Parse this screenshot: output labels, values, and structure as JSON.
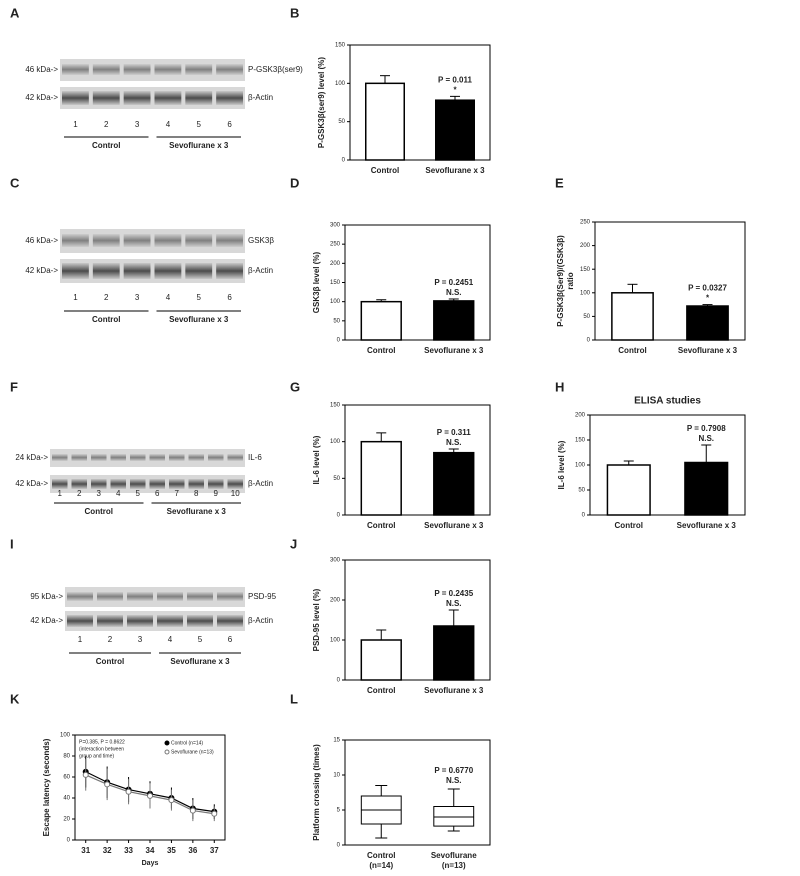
{
  "panel_letters": [
    "A",
    "B",
    "C",
    "D",
    "E",
    "F",
    "G",
    "H",
    "I",
    "J",
    "K",
    "L"
  ],
  "blots": [
    {
      "bands": [
        {
          "mw": "46 kDa->",
          "name": "P-GSK3β(ser9)"
        },
        {
          "mw": "42 kDa->",
          "name": "β-Actin"
        }
      ],
      "lanes": [
        "1",
        "2",
        "3",
        "4",
        "5",
        "6"
      ],
      "groups": [
        "Control",
        "Sevoflurane x 3"
      ]
    },
    {
      "bands": [
        {
          "mw": "46 kDa->",
          "name": "GSK3β"
        },
        {
          "mw": "42 kDa->",
          "name": "β-Actin"
        }
      ],
      "lanes": [
        "1",
        "2",
        "3",
        "4",
        "5",
        "6"
      ],
      "groups": [
        "Control",
        "Sevoflurane x 3"
      ]
    },
    {
      "bands": [
        {
          "mw": "24 kDa->",
          "name": "IL-6"
        },
        {
          "mw": "42 kDa->",
          "name": "β-Actin"
        }
      ],
      "lanes": [
        "1",
        "2",
        "3",
        "4",
        "5",
        "6",
        "7",
        "8",
        "9",
        "10"
      ],
      "groups": [
        "Control",
        "Sevoflurane x 3"
      ]
    },
    {
      "bands": [
        {
          "mw": "95 kDa->",
          "name": "PSD-95"
        },
        {
          "mw": "42 kDa->",
          "name": "β-Actin"
        }
      ],
      "lanes": [
        "1",
        "2",
        "3",
        "4",
        "5",
        "6"
      ],
      "groups": [
        "Control",
        "Sevoflurane x 3"
      ]
    }
  ],
  "chart_data": [
    {
      "type": "bar",
      "ylabel": [
        "P-GSK3β(ser9) level (%)"
      ],
      "categories": [
        "Control",
        "Sevoflurane x 3"
      ],
      "values": [
        100,
        78
      ],
      "errors": [
        10,
        5
      ],
      "colors": [
        "#ffffff",
        "#000000"
      ],
      "ylim": [
        0,
        150
      ],
      "yticks": [
        0,
        50,
        100,
        150
      ],
      "annotations": [
        "P = 0.011",
        "*"
      ]
    },
    {
      "type": "bar",
      "ylabel": [
        "GSK3β level (%)"
      ],
      "categories": [
        "Control",
        "Sevoflurane x 3"
      ],
      "values": [
        100,
        102
      ],
      "errors": [
        5,
        5
      ],
      "colors": [
        "#ffffff",
        "#000000"
      ],
      "ylim": [
        0,
        300
      ],
      "yticks": [
        0,
        50,
        100,
        150,
        200,
        250,
        300
      ],
      "annotations": [
        "P = 0.2451",
        "N.S."
      ]
    },
    {
      "type": "bar",
      "ylabel": [
        "P-GSK3β(Ser9)/(GSK3β)",
        "ratio"
      ],
      "categories": [
        "Control",
        "Sevoflurane x 3"
      ],
      "values": [
        100,
        72
      ],
      "errors": [
        18,
        3
      ],
      "colors": [
        "#ffffff",
        "#000000"
      ],
      "ylim": [
        0,
        250
      ],
      "yticks": [
        0,
        50,
        100,
        150,
        200,
        250
      ],
      "annotations": [
        "P = 0.0327",
        "*"
      ]
    },
    {
      "type": "bar",
      "ylabel": [
        "IL-6 level (%)"
      ],
      "categories": [
        "Control",
        "Sevoflurane x 3"
      ],
      "values": [
        100,
        85
      ],
      "errors": [
        12,
        5
      ],
      "colors": [
        "#ffffff",
        "#000000"
      ],
      "ylim": [
        0,
        150
      ],
      "yticks": [
        0,
        50,
        100,
        150
      ],
      "annotations": [
        "P = 0.311",
        "N.S."
      ]
    },
    {
      "type": "bar",
      "title": "ELISA studies",
      "ylabel": [
        "IL-6  level (%)"
      ],
      "categories": [
        "Control",
        "Sevoflurane x 3"
      ],
      "values": [
        100,
        105
      ],
      "errors": [
        8,
        35
      ],
      "colors": [
        "#ffffff",
        "#000000"
      ],
      "ylim": [
        0,
        200
      ],
      "yticks": [
        0,
        50,
        100,
        150,
        200
      ],
      "annotations": [
        "P = 0.7908",
        "N.S."
      ]
    },
    {
      "type": "bar",
      "ylabel": [
        "PSD-95 level (%)"
      ],
      "categories": [
        "Control",
        "Sevoflurane x 3"
      ],
      "values": [
        100,
        135
      ],
      "errors": [
        25,
        40
      ],
      "colors": [
        "#ffffff",
        "#000000"
      ],
      "ylim": [
        0,
        300
      ],
      "yticks": [
        0,
        100,
        200,
        300
      ],
      "annotations": [
        "P = 0.2435",
        "N.S."
      ]
    },
    {
      "type": "line",
      "ylabel": [
        "Escape latency (seconds)"
      ],
      "xlabel": "Days",
      "x": [
        31,
        32,
        33,
        34,
        35,
        36,
        37
      ],
      "xlim": [
        30.5,
        37.5
      ],
      "xticks": [
        31,
        32,
        33,
        34,
        35,
        36,
        37
      ],
      "ylim": [
        0,
        100
      ],
      "yticks": [
        0,
        20,
        40,
        60,
        80,
        100
      ],
      "series": [
        {
          "name": "Control (n=14)",
          "color": "#000000",
          "values": [
            65,
            55,
            48,
            44,
            40,
            30,
            27
          ],
          "errors": [
            15,
            15,
            12,
            12,
            10,
            10,
            7
          ]
        },
        {
          "name": "Sevoflurane (n=13)",
          "color": "#777777",
          "values": [
            62,
            53,
            46,
            42,
            38,
            28,
            25
          ],
          "errors": [
            15,
            15,
            12,
            12,
            10,
            10,
            7
          ]
        }
      ],
      "annotations": [
        "P=0.385, P = 0.8622",
        "(interaction between",
        "group and time)"
      ]
    },
    {
      "type": "box",
      "ylabel": [
        "Platform crossing (times)"
      ],
      "categories": [
        "Control",
        "Sevoflurane"
      ],
      "n_labels": [
        "(n=14)",
        "(n=13)"
      ],
      "boxes": [
        {
          "min": 1,
          "q1": 3,
          "median": 5,
          "q3": 7,
          "max": 8.5
        },
        {
          "min": 2,
          "q1": 2.7,
          "median": 4,
          "q3": 5.5,
          "max": 8
        }
      ],
      "ylim": [
        0,
        15
      ],
      "yticks": [
        0,
        5,
        10,
        15
      ],
      "annotations": [
        "P = 0.6770",
        "N.S."
      ]
    }
  ]
}
